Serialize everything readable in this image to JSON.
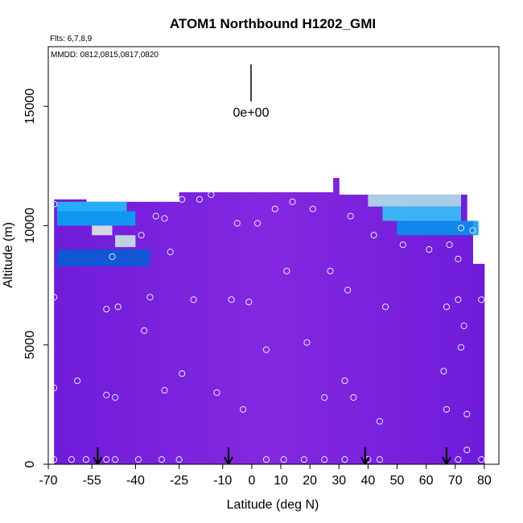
{
  "chart_data": {
    "type": "heatmap",
    "title": "ATOM1 Northbound H1202_GMI",
    "annotations": {
      "flights": "Flts: 6,7,8,9",
      "dates": "MMDD: 0812,0815,0817,0820",
      "scale_label": "0e+00"
    },
    "xlabel": "Latitude (deg N)",
    "ylabel": "Altitude (m)",
    "xlim": [
      -70,
      85
    ],
    "ylim": [
      0,
      17500
    ],
    "x_ticks": [
      -70,
      -55,
      -40,
      -25,
      -10,
      0,
      10,
      20,
      30,
      40,
      50,
      60,
      70,
      80
    ],
    "y_ticks": [
      0,
      5000,
      10000,
      15000
    ],
    "x_tick_labels": [
      "-70",
      "-55",
      "-40",
      "-25",
      "-10",
      "0",
      "10",
      "20",
      "30",
      "40",
      "50",
      "60",
      "70",
      "80"
    ],
    "y_tick_labels": [
      "0",
      "5000",
      "10000",
      "15000"
    ],
    "colors": {
      "background_field": "#8a2be2",
      "low": "#0000a0",
      "mid": "#00bfff",
      "high": "#ffffe0",
      "sample_marker": "#e6e6ff"
    },
    "high_regions": [
      {
        "lat": [
          -67,
          -43
        ],
        "alt": [
          10600,
          11000
        ],
        "level": 0.55
      },
      {
        "lat": [
          -67,
          -40
        ],
        "alt": [
          10000,
          10600
        ],
        "level": 0.45
      },
      {
        "lat": [
          -55,
          -48
        ],
        "alt": [
          9600,
          10000
        ],
        "level": 0.95
      },
      {
        "lat": [
          -47,
          -40
        ],
        "alt": [
          9100,
          9600
        ],
        "level": 0.9
      },
      {
        "lat": [
          -67,
          -35
        ],
        "alt": [
          8300,
          9000
        ],
        "level": 0.25
      },
      {
        "lat": [
          40,
          72
        ],
        "alt": [
          10800,
          11300
        ],
        "level": 0.85
      },
      {
        "lat": [
          45,
          72
        ],
        "alt": [
          10200,
          10800
        ],
        "level": 0.6
      },
      {
        "lat": [
          50,
          78
        ],
        "alt": [
          9600,
          10200
        ],
        "level": 0.4
      }
    ],
    "flight_markers_lat": [
      -53,
      -8,
      39,
      67
    ],
    "samples": [
      {
        "x": -68,
        "y": 200
      },
      {
        "x": -62,
        "y": 200
      },
      {
        "x": -57,
        "y": 200
      },
      {
        "x": -50,
        "y": 200
      },
      {
        "x": -47,
        "y": 200
      },
      {
        "x": -39,
        "y": 200
      },
      {
        "x": -31,
        "y": 200
      },
      {
        "x": -25,
        "y": 200
      },
      {
        "x": 5,
        "y": 200
      },
      {
        "x": 11,
        "y": 200
      },
      {
        "x": 18,
        "y": 200
      },
      {
        "x": 25,
        "y": 200
      },
      {
        "x": 32,
        "y": 200
      },
      {
        "x": 40,
        "y": 200
      },
      {
        "x": 44,
        "y": 200
      },
      {
        "x": 71,
        "y": 200
      },
      {
        "x": 79,
        "y": 200
      },
      {
        "x": 74,
        "y": 600
      },
      {
        "x": -68,
        "y": 3200
      },
      {
        "x": -60,
        "y": 3500
      },
      {
        "x": -50,
        "y": 2900
      },
      {
        "x": -47,
        "y": 2800
      },
      {
        "x": -30,
        "y": 3100
      },
      {
        "x": -24,
        "y": 3800
      },
      {
        "x": -12,
        "y": 3000
      },
      {
        "x": -3,
        "y": 2300
      },
      {
        "x": 25,
        "y": 2800
      },
      {
        "x": 32,
        "y": 3500
      },
      {
        "x": 35,
        "y": 2800
      },
      {
        "x": 44,
        "y": 1800
      },
      {
        "x": 66,
        "y": 3900
      },
      {
        "x": 67,
        "y": 2300
      },
      {
        "x": 74,
        "y": 2100
      },
      {
        "x": 19,
        "y": 5100
      },
      {
        "x": 5,
        "y": 4800
      },
      {
        "x": 72,
        "y": 4900
      },
      {
        "x": -37,
        "y": 5600
      },
      {
        "x": -68,
        "y": 7000
      },
      {
        "x": -50,
        "y": 6500
      },
      {
        "x": -46,
        "y": 6600
      },
      {
        "x": -35,
        "y": 7000
      },
      {
        "x": -20,
        "y": 6900
      },
      {
        "x": -7,
        "y": 6900
      },
      {
        "x": -1,
        "y": 6800
      },
      {
        "x": 33,
        "y": 7300
      },
      {
        "x": 46,
        "y": 6600
      },
      {
        "x": 67,
        "y": 6600
      },
      {
        "x": 71,
        "y": 6900
      },
      {
        "x": 73,
        "y": 5800
      },
      {
        "x": 79,
        "y": 6900
      },
      {
        "x": 12,
        "y": 8100
      },
      {
        "x": 27,
        "y": 8100
      },
      {
        "x": -48,
        "y": 8700
      },
      {
        "x": -28,
        "y": 8900
      },
      {
        "x": 52,
        "y": 9200
      },
      {
        "x": 61,
        "y": 9000
      },
      {
        "x": 68,
        "y": 9200
      },
      {
        "x": 71,
        "y": 8600
      },
      {
        "x": -38,
        "y": 9600
      },
      {
        "x": 42,
        "y": 9600
      },
      {
        "x": -33,
        "y": 10400
      },
      {
        "x": -30,
        "y": 10300
      },
      {
        "x": -5,
        "y": 10100
      },
      {
        "x": 2,
        "y": 10100
      },
      {
        "x": 34,
        "y": 10400
      },
      {
        "x": 72,
        "y": 9900
      },
      {
        "x": 76,
        "y": 9800
      },
      {
        "x": -68,
        "y": 10900
      },
      {
        "x": -24,
        "y": 11100
      },
      {
        "x": -18,
        "y": 11100
      },
      {
        "x": -14,
        "y": 11300
      },
      {
        "x": 8,
        "y": 10700
      },
      {
        "x": 14,
        "y": 11000
      },
      {
        "x": 21,
        "y": 10700
      }
    ]
  }
}
